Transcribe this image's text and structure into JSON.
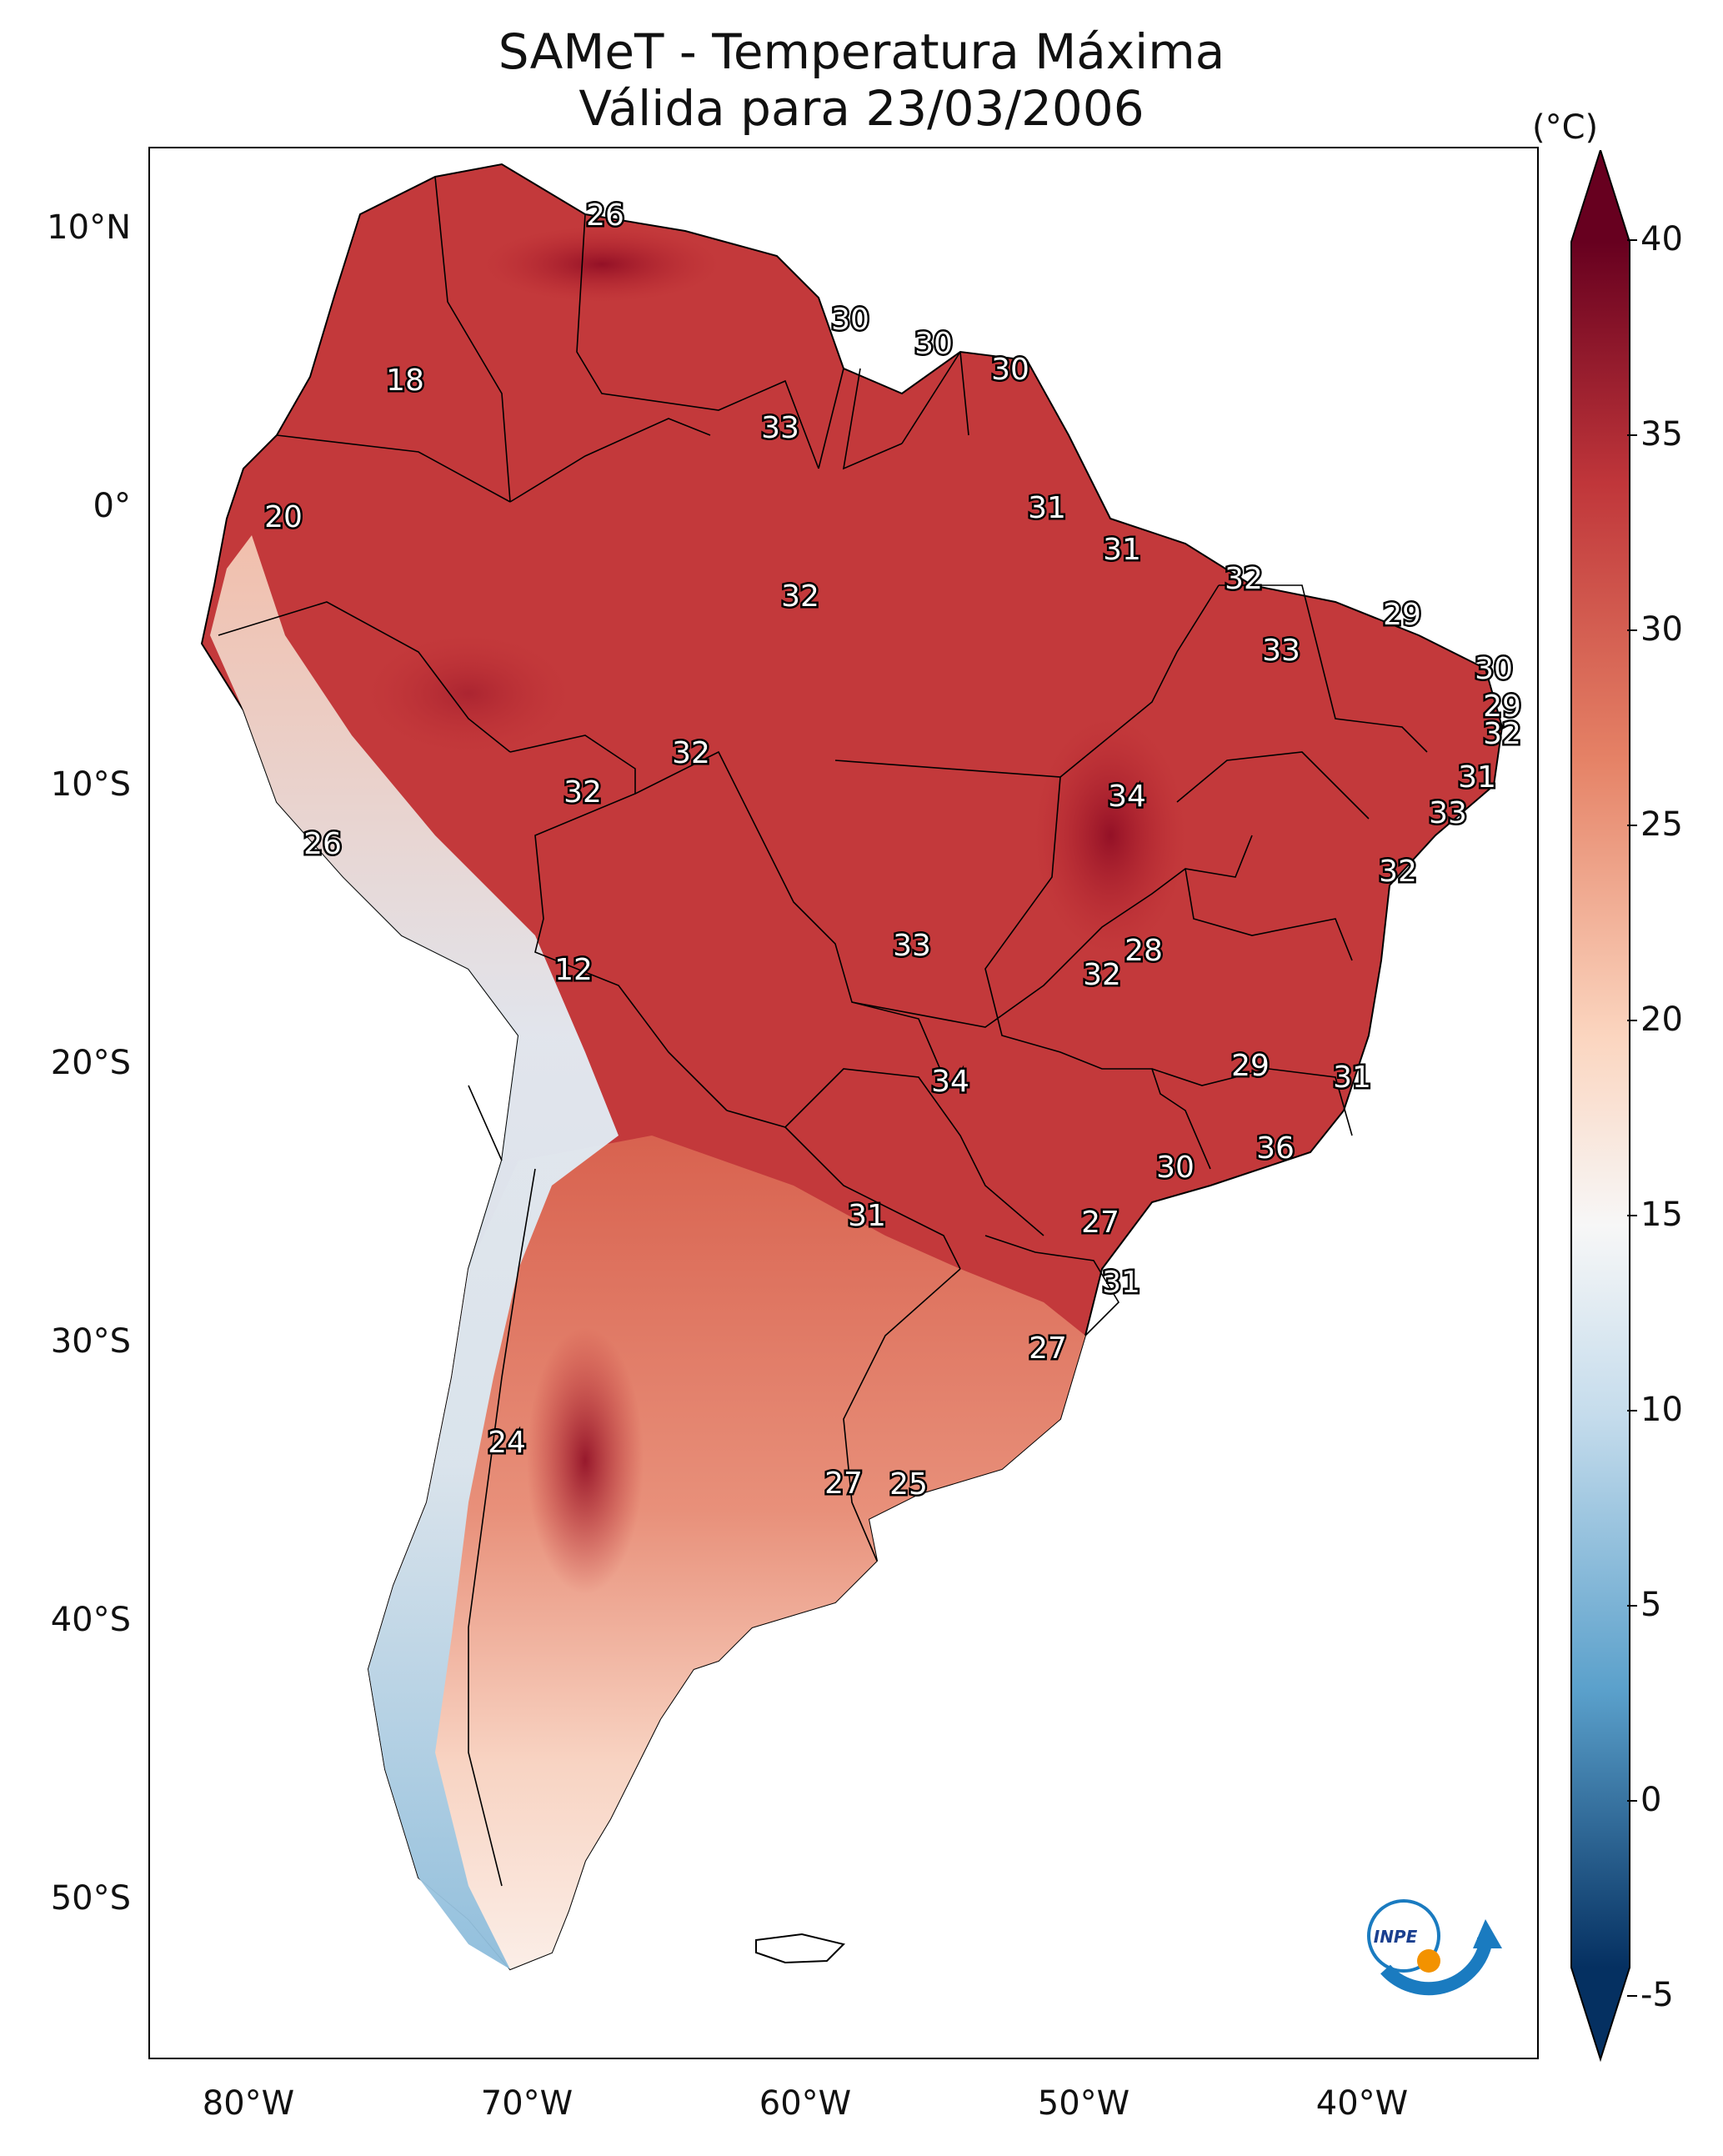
{
  "title": {
    "line1": "SAMeT - Temperatura Máxima",
    "line2": "Válida para 23/03/2006"
  },
  "latitude_labels": [
    "10°N",
    "0°",
    "10°S",
    "20°S",
    "30°S",
    "40°S",
    "50°S"
  ],
  "longitude_labels": [
    "80°W",
    "70°W",
    "60°W",
    "50°W",
    "40°W"
  ],
  "colorbar": {
    "unit": "(°C)",
    "ticks": [
      "40",
      "35",
      "30",
      "25",
      "20",
      "15",
      "10",
      "5",
      "0",
      "-5"
    ],
    "colors": {
      "hot_max": "#67001f",
      "hot": "#c0363a",
      "warm": "#e58266",
      "mild": "#fbd5bf",
      "neutral": "#f7f7f7",
      "cool": "#c5dcec",
      "cold": "#5aa0cb",
      "cold_max": "#053061"
    }
  },
  "temperature_labels": [
    {
      "text": "26"
    },
    {
      "text": "30"
    },
    {
      "text": "30"
    },
    {
      "text": "30"
    },
    {
      "text": "18"
    },
    {
      "text": "33"
    },
    {
      "text": "20"
    },
    {
      "text": "31"
    },
    {
      "text": "31"
    },
    {
      "text": "32"
    },
    {
      "text": "32"
    },
    {
      "text": "29"
    },
    {
      "text": "33"
    },
    {
      "text": "30"
    },
    {
      "text": "29"
    },
    {
      "text": "32"
    },
    {
      "text": "32"
    },
    {
      "text": "32"
    },
    {
      "text": "34"
    },
    {
      "text": "31"
    },
    {
      "text": "33"
    },
    {
      "text": "26"
    },
    {
      "text": "32"
    },
    {
      "text": "28"
    },
    {
      "text": "32"
    },
    {
      "text": "12"
    },
    {
      "text": "33"
    },
    {
      "text": "29"
    },
    {
      "text": "31"
    },
    {
      "text": "34"
    },
    {
      "text": "36"
    },
    {
      "text": "30"
    },
    {
      "text": "31"
    },
    {
      "text": "27"
    },
    {
      "text": "31"
    },
    {
      "text": "27"
    },
    {
      "text": "24"
    },
    {
      "text": "27"
    },
    {
      "text": "25"
    }
  ],
  "logo": {
    "text": "INPE"
  }
}
